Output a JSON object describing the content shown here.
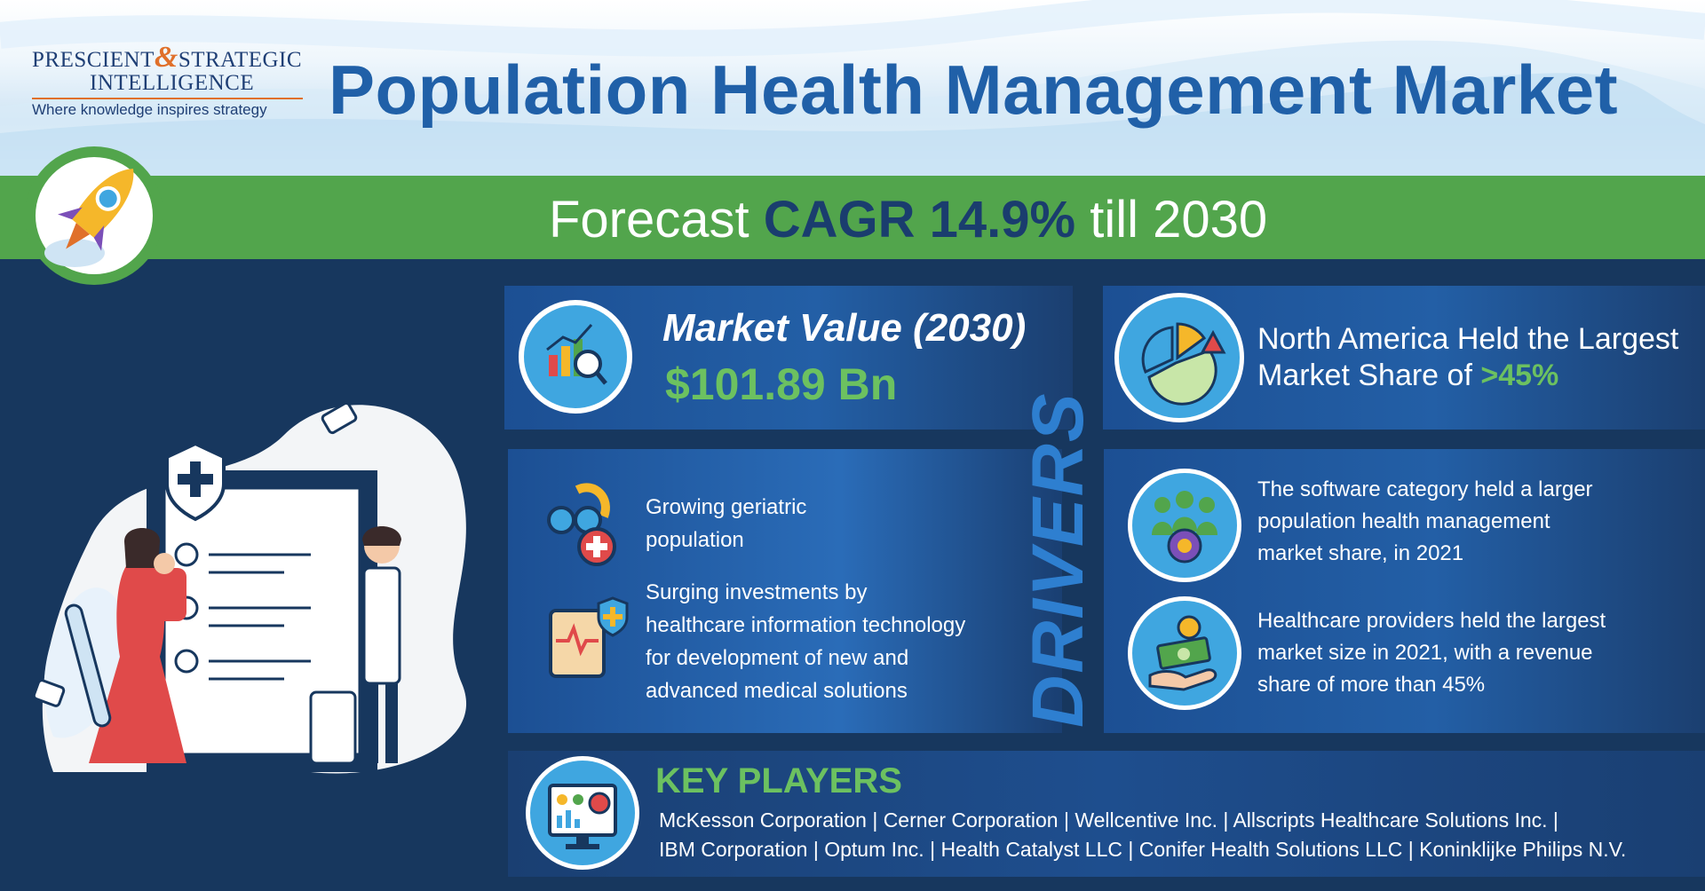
{
  "logo": {
    "line1_a": "PRESCIENT",
    "amp": "&",
    "line1_b": "STRATEGIC",
    "line2": "INTELLIGENCE",
    "tagline": "Where knowledge inspires strategy"
  },
  "title": "Population Health Management Market",
  "forecast": {
    "prefix": "Forecast",
    "highlight": "CAGR 14.9%",
    "suffix": "till 2030"
  },
  "market_value": {
    "label": "Market Value (2030)",
    "value": "$101.89 Bn"
  },
  "region": {
    "line1": "North America Held the Largest",
    "line2": "Market Share of",
    "value": ">45%"
  },
  "drivers": {
    "heading": "DRIVERS",
    "items": [
      {
        "lines": [
          "Growing geriatric",
          "population"
        ]
      },
      {
        "lines": [
          "Surging investments by",
          "healthcare information technology",
          "for development of new and",
          "advanced medical solutions"
        ]
      }
    ]
  },
  "insights": [
    {
      "lines": [
        "The software category held a larger",
        "population health management",
        "market share, in 2021"
      ]
    },
    {
      "lines": [
        "Healthcare providers held the largest",
        "market size in 2021, with a revenue",
        "share of more than 45%"
      ]
    }
  ],
  "key_players": {
    "heading": "KEY PLAYERS",
    "line1": "McKesson Corporation | Cerner Corporation | Wellcentive Inc. | Allscripts Healthcare Solutions Inc. |",
    "line2": "IBM Corporation | Optum Inc. | Health Catalyst LLC | Conifer Health Solutions LLC | Koninklijke Philips N.V."
  },
  "icons": [
    "rocket-icon",
    "chart-analysis-icon",
    "pie-chart-icon",
    "geriatric-icon",
    "health-it-icon",
    "people-gear-icon",
    "money-hand-icon",
    "dashboard-icon"
  ],
  "colors": {
    "navy": "#17375e",
    "blue": "#2060a8",
    "green": "#52a54c",
    "accent_green": "#6cc160",
    "orange": "#e0702a",
    "light_blue": "#3fa6e0"
  }
}
